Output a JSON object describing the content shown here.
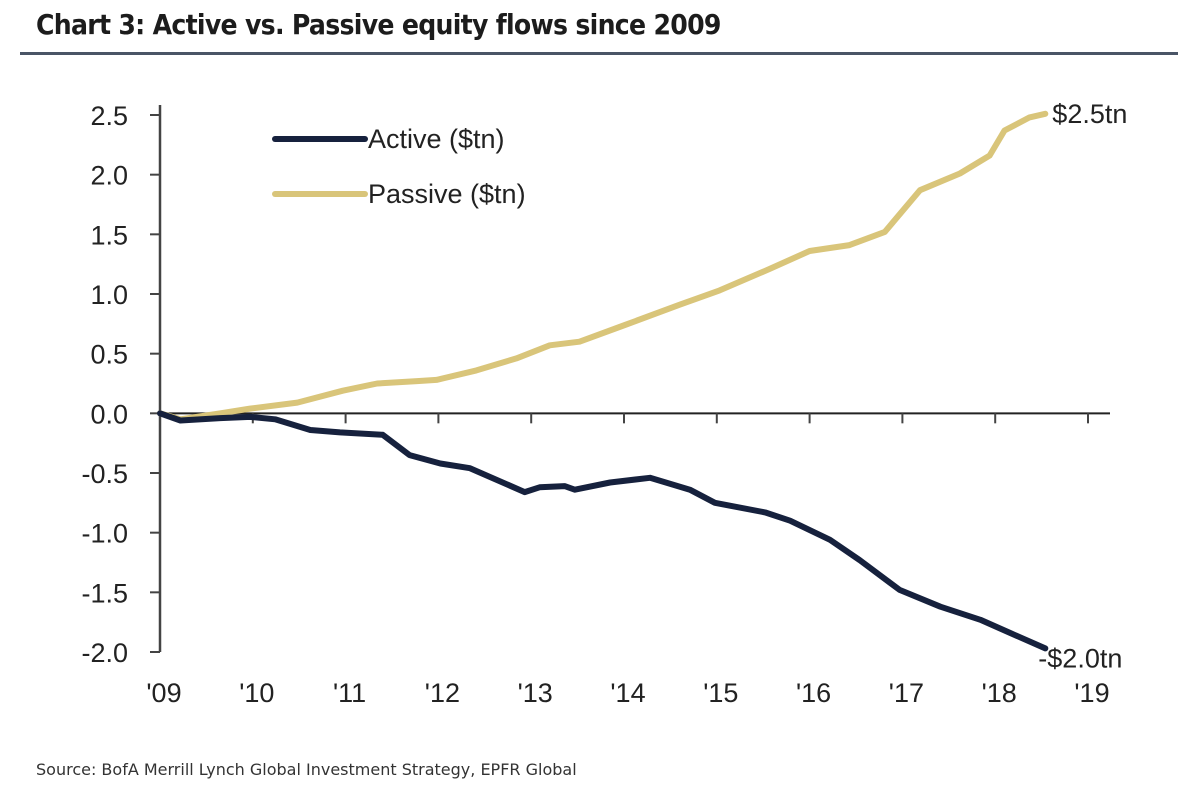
{
  "header": {
    "title": "Chart 3: Active vs. Passive equity flows since 2009"
  },
  "footer": {
    "source": "Source: BofA Merrill Lynch Global Investment Strategy, EPFR Global"
  },
  "colors": {
    "active": "#16213d",
    "passive": "#d9c57a",
    "axis": "#444444",
    "title_rule": "#4a5566"
  },
  "chart_data": {
    "type": "line",
    "title": "Chart 3: Active vs. Passive equity flows since 2009",
    "xlabel": "",
    "ylabel": "",
    "xlim": [
      2009,
      2019
    ],
    "ylim": [
      -2.0,
      2.5
    ],
    "yticks": [
      2.5,
      2.0,
      1.5,
      1.0,
      0.5,
      0.0,
      -0.5,
      -1.0,
      -1.5,
      -2.0
    ],
    "ytick_labels": [
      "2.5",
      "2.0",
      "1.5",
      "1.0",
      "0.5",
      "0.0",
      "-0.5",
      "-1.0",
      "-1.5",
      "-2.0"
    ],
    "xticks": [
      2009,
      2010,
      2011,
      2012,
      2013,
      2014,
      2015,
      2016,
      2017,
      2018,
      2019
    ],
    "xtick_labels": [
      "'09",
      "'10",
      "'11",
      "'12",
      "'13",
      "'14",
      "'15",
      "'16",
      "'17",
      "'18",
      "'19"
    ],
    "grid": false,
    "legend_position": "top-left",
    "series": [
      {
        "name": "Active ($tn)",
        "color": "#16213d",
        "end_label": "-$2.0tn",
        "x": [
          2009.0,
          2009.22,
          2009.65,
          2009.97,
          2010.24,
          2010.62,
          2010.94,
          2011.4,
          2011.69,
          2012.02,
          2012.34,
          2012.93,
          2013.09,
          2013.36,
          2013.47,
          2013.85,
          2014.28,
          2014.71,
          2014.98,
          2015.52,
          2015.79,
          2016.22,
          2016.54,
          2016.97,
          2017.41,
          2017.84,
          2018.16,
          2018.54
        ],
        "values": [
          0.0,
          -0.06,
          -0.04,
          -0.03,
          -0.05,
          -0.14,
          -0.16,
          -0.18,
          -0.35,
          -0.42,
          -0.46,
          -0.66,
          -0.62,
          -0.61,
          -0.64,
          -0.58,
          -0.54,
          -0.64,
          -0.75,
          -0.83,
          -0.9,
          -1.06,
          -1.23,
          -1.48,
          -1.62,
          -1.73,
          -1.84,
          -1.97
        ]
      },
      {
        "name": "Passive ($tn)",
        "color": "#d9c57a",
        "end_label": "$2.5tn",
        "x": [
          2009.0,
          2009.22,
          2009.65,
          2009.97,
          2010.48,
          2010.97,
          2011.34,
          2011.77,
          2011.98,
          2012.41,
          2012.84,
          2013.2,
          2013.52,
          2014.01,
          2014.6,
          2015.03,
          2015.57,
          2016.0,
          2016.43,
          2016.81,
          2017.19,
          2017.62,
          2017.94,
          2018.1,
          2018.37,
          2018.54
        ],
        "values": [
          0.0,
          -0.05,
          0.0,
          0.04,
          0.09,
          0.19,
          0.25,
          0.27,
          0.28,
          0.36,
          0.46,
          0.57,
          0.6,
          0.74,
          0.91,
          1.03,
          1.21,
          1.36,
          1.41,
          1.52,
          1.87,
          2.01,
          2.16,
          2.37,
          2.48,
          2.51
        ]
      }
    ]
  }
}
